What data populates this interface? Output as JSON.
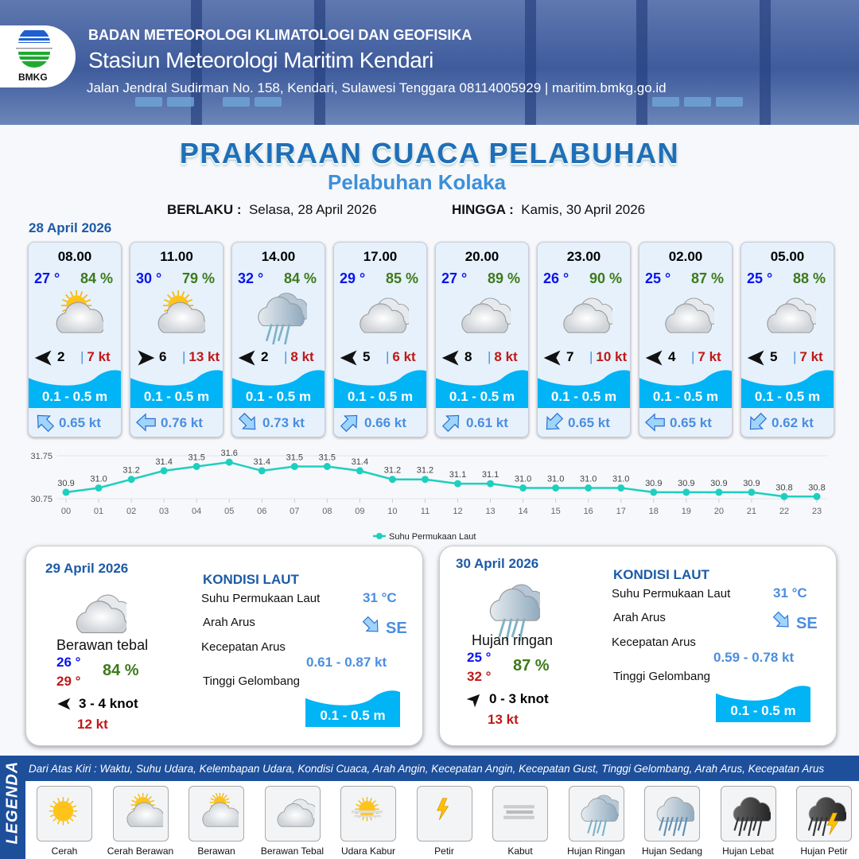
{
  "header": {
    "logo_text": "BMKG",
    "agency": "BADAN METEOROLOGI KLIMATOLOGI DAN GEOFISIKA",
    "station": "Stasiun Meteorologi Maritim Kendari",
    "address": "Jalan Jendral Sudirman No. 158, Kendari, Sulawesi Tenggara  08114005929 | maritim.bmkg.go.id"
  },
  "title": "PRAKIRAAN CUACA PELABUHAN",
  "subtitle": "Pelabuhan Kolaka",
  "validity": {
    "from_label": "BERLAKU :",
    "from": "Selasa, 28 April 2026",
    "to_label": "HINGGA :",
    "to": "Kamis, 30 April 2026"
  },
  "day1": {
    "date": "28 April 2026",
    "cards": [
      {
        "time": "08.00",
        "temp": "27 °",
        "hum": "84 %",
        "icon": "cerah-berawan",
        "wind_dir": "west",
        "wind": "2",
        "gust": "7 kt",
        "wave": "0.1 - 0.5 m",
        "cur_dir": "northwest",
        "cur": "0.65 kt"
      },
      {
        "time": "11.00",
        "temp": "30 °",
        "hum": "79 %",
        "icon": "cerah-berawan",
        "wind_dir": "east",
        "wind": "6",
        "gust": "13 kt",
        "wave": "0.1 - 0.5 m",
        "cur_dir": "west",
        "cur": "0.76 kt"
      },
      {
        "time": "14.00",
        "temp": "32 °",
        "hum": "84 %",
        "icon": "hujan-ringan",
        "wind_dir": "west",
        "wind": "2",
        "gust": "8 kt",
        "wave": "0.1 - 0.5 m",
        "cur_dir": "southeast",
        "cur": "0.73 kt"
      },
      {
        "time": "17.00",
        "temp": "29 °",
        "hum": "85 %",
        "icon": "berawan-tebal",
        "wind_dir": "west",
        "wind": "5",
        "gust": "6 kt",
        "wave": "0.1 - 0.5 m",
        "cur_dir": "northeast",
        "cur": "0.66 kt"
      },
      {
        "time": "20.00",
        "temp": "27 °",
        "hum": "89 %",
        "icon": "berawan-tebal",
        "wind_dir": "west",
        "wind": "8",
        "gust": "8 kt",
        "wave": "0.1 - 0.5 m",
        "cur_dir": "northeast",
        "cur": "0.61 kt"
      },
      {
        "time": "23.00",
        "temp": "26 °",
        "hum": "90 %",
        "icon": "berawan-tebal",
        "wind_dir": "west",
        "wind": "7",
        "gust": "10 kt",
        "wave": "0.1 - 0.5 m",
        "cur_dir": "southwest",
        "cur": "0.65 kt"
      },
      {
        "time": "02.00",
        "temp": "25 °",
        "hum": "87 %",
        "icon": "berawan-tebal",
        "wind_dir": "west",
        "wind": "4",
        "gust": "7 kt",
        "wave": "0.1 - 0.5 m",
        "cur_dir": "west",
        "cur": "0.65 kt"
      },
      {
        "time": "05.00",
        "temp": "25 °",
        "hum": "88 %",
        "icon": "berawan-tebal",
        "wind_dir": "west",
        "wind": "5",
        "gust": "7 kt",
        "wave": "0.1 - 0.5 m",
        "cur_dir": "southwest",
        "cur": "0.62 kt"
      }
    ]
  },
  "chart_data": {
    "type": "line",
    "categories": [
      "00",
      "01",
      "02",
      "03",
      "04",
      "05",
      "06",
      "07",
      "08",
      "09",
      "10",
      "11",
      "12",
      "13",
      "14",
      "15",
      "16",
      "17",
      "18",
      "19",
      "20",
      "21",
      "22",
      "23"
    ],
    "series": [
      {
        "name": "Suhu Permukaan Laut",
        "values": [
          30.9,
          31.0,
          31.2,
          31.4,
          31.5,
          31.6,
          31.4,
          31.5,
          31.5,
          31.4,
          31.2,
          31.2,
          31.1,
          31.1,
          31.0,
          31.0,
          31.0,
          31.0,
          30.9,
          30.9,
          30.9,
          30.9,
          30.8,
          30.8
        ]
      }
    ],
    "yticks": [
      "31.75",
      "30.75"
    ],
    "ylim": [
      30.75,
      31.75
    ],
    "legend": "bottom",
    "color": "#1ecfbf"
  },
  "panels": [
    {
      "date": "29 April 2026",
      "icon": "berawan-tebal",
      "condition": "Berawan tebal",
      "tmin": "26 °",
      "tmax": "29 °",
      "hum": "84 %",
      "wind_dir": "west",
      "wind": "3  - 4 knot",
      "gust": "12 kt",
      "sea_title": "KONDISI LAUT",
      "sst_label": "Suhu Permukaan Laut",
      "sst": "31 °C",
      "cur_dir_label": "Arah Arus",
      "cur_dir": "SE",
      "cur_speed_label": "Kecepatan Arus",
      "cur_speed": "0.61 - 0.87 kt",
      "wave_label": "Tinggi Gelombang",
      "wave": "0.1 - 0.5 m"
    },
    {
      "date": "30 April 2026",
      "icon": "hujan-ringan",
      "condition": "Hujan ringan",
      "tmin": "25 °",
      "tmax": "32 °",
      "hum": "87 %",
      "wind_dir": "northeast",
      "wind": "0  - 3 knot",
      "gust": "13 kt",
      "sea_title": "KONDISI LAUT",
      "sst_label": "Suhu Permukaan Laut",
      "sst": "31 °C",
      "cur_dir_label": "Arah Arus",
      "cur_dir": "SE",
      "cur_speed_label": "Kecepatan Arus",
      "cur_speed": "0.59  - 0.78 kt",
      "wave_label": "Tinggi Gelombang",
      "wave": "0.1 - 0.5 m"
    }
  ],
  "legend": {
    "title": "LEGENDA",
    "description": "Dari Atas Kiri : Waktu, Suhu Udara, Kelembapan Udara, Kondisi Cuaca, Arah Angin, Kecepatan Angin, Kecepatan Gust, Tinggi Gelombang, Arah Arus, Kecepatan Arus",
    "items": [
      {
        "label": "Cerah",
        "icon": "cerah"
      },
      {
        "label": "Cerah Berawan",
        "icon": "cerah-berawan"
      },
      {
        "label": "Berawan",
        "icon": "berawan"
      },
      {
        "label": "Berawan Tebal",
        "icon": "berawan-tebal"
      },
      {
        "label": "Udara Kabur",
        "icon": "udara-kabur"
      },
      {
        "label": "Petir",
        "icon": "petir"
      },
      {
        "label": "Kabut",
        "icon": "kabut"
      },
      {
        "label": "Hujan Ringan",
        "icon": "hujan-ringan"
      },
      {
        "label": "Hujan Sedang",
        "icon": "hujan-sedang"
      },
      {
        "label": "Hujan Lebat",
        "icon": "hujan-lebat"
      },
      {
        "label": "Hujan Petir",
        "icon": "hujan-petir"
      }
    ]
  },
  "colors": {
    "brand": "#1d4f9b",
    "temp": "#0a14f0",
    "humidity": "#3d7a1a",
    "gust": "#c01818",
    "wave": "#00b4f5",
    "current": "#4a8ee0"
  }
}
